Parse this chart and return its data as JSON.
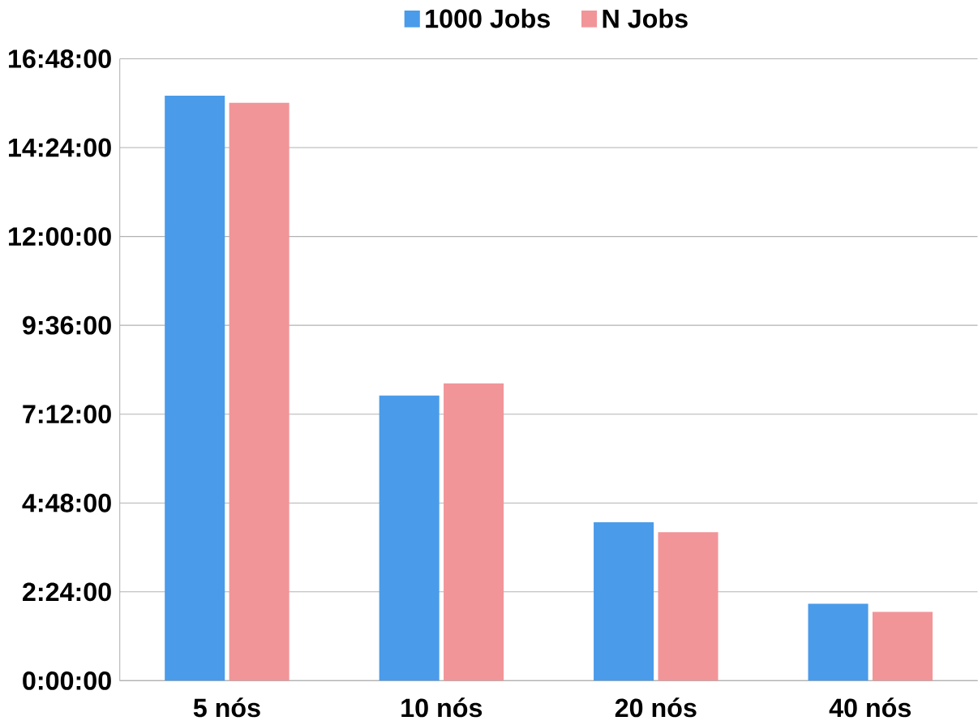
{
  "chart_data": {
    "type": "bar",
    "categories": [
      "5 nós",
      "10 nós",
      "20 nós",
      "40 nós"
    ],
    "series": [
      {
        "name": "1000 Jobs",
        "color": "#4a9bea",
        "values": [
          15.8,
          7.7,
          4.28,
          2.08
        ]
      },
      {
        "name": "N Jobs",
        "color": "#f19599",
        "values": [
          15.61,
          8.03,
          4.01,
          1.86
        ]
      }
    ],
    "ylim": [
      0,
      16.8
    ],
    "yticks": [
      {
        "value": 0,
        "label": "0:00:00"
      },
      {
        "value": 2.4,
        "label": "2:24:00"
      },
      {
        "value": 4.8,
        "label": "4:48:00"
      },
      {
        "value": 7.2,
        "label": "7:12:00"
      },
      {
        "value": 9.6,
        "label": "9:36:00"
      },
      {
        "value": 12,
        "label": "12:00:00"
      },
      {
        "value": 14.4,
        "label": "14:24:00"
      },
      {
        "value": 16.8,
        "label": "16:48:00"
      }
    ],
    "grid": "y",
    "legend": "top"
  }
}
